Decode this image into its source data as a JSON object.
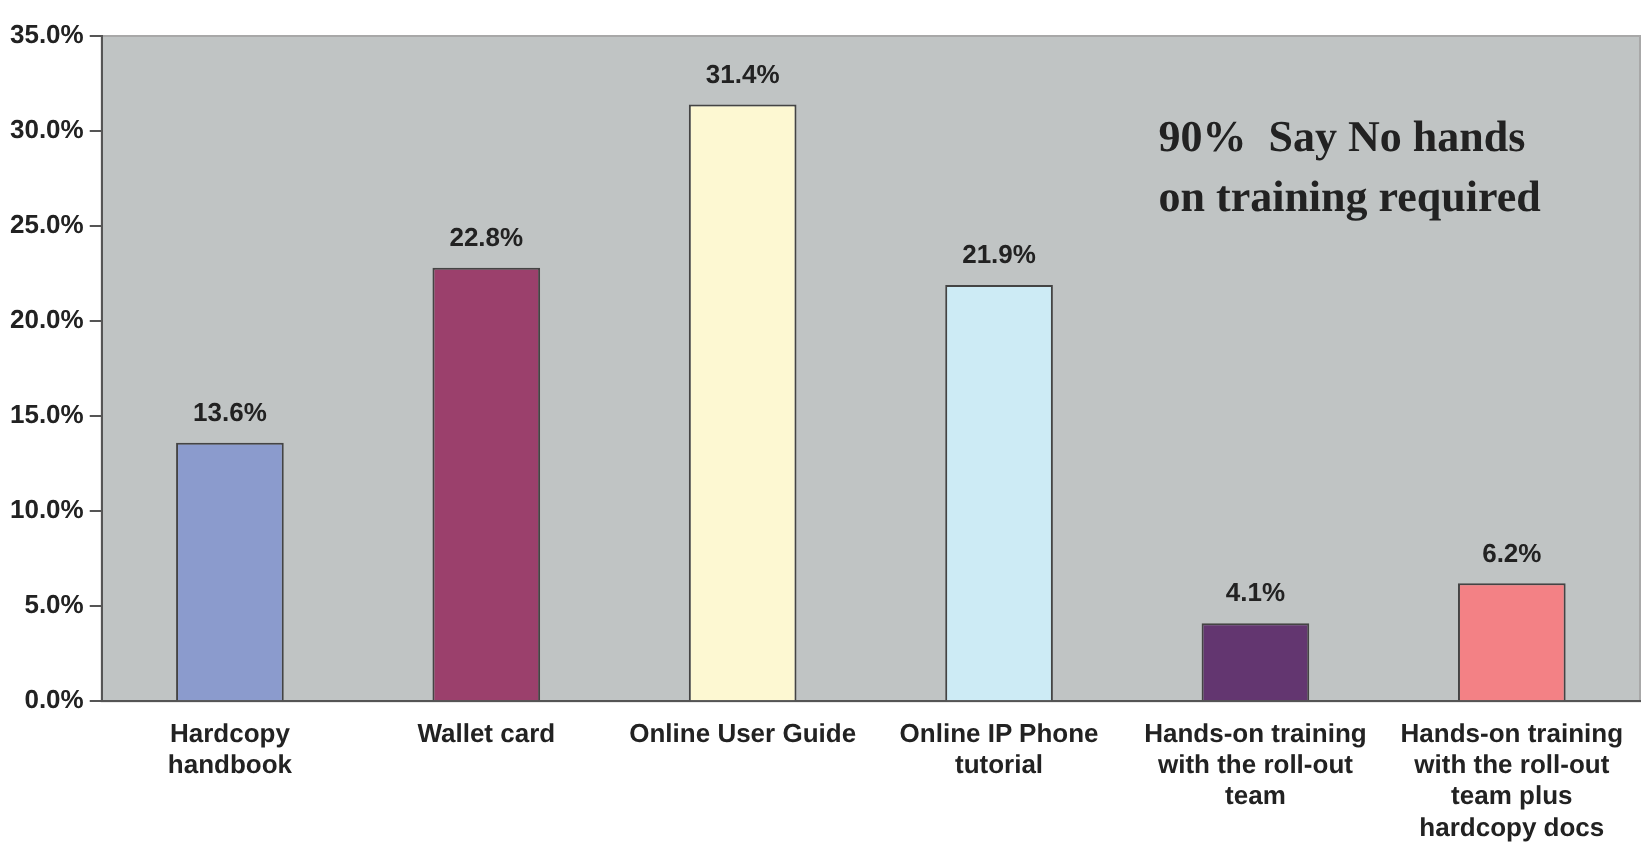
{
  "chart_data": {
    "type": "bar",
    "categories": [
      "Hardcopy handbook",
      "Wallet card",
      "Online User Guide",
      "Online IP Phone tutorial",
      "Hands-on training with the roll-out team",
      "Hands-on training with the roll-out team plus hardcopy docs"
    ],
    "values": [
      13.6,
      22.8,
      31.4,
      21.9,
      4.1,
      6.2
    ],
    "colors": [
      "#8b9bcd",
      "#9b406c",
      "#fdf8d2",
      "#cdebf5",
      "#633670",
      "#f38185"
    ],
    "value_labels": [
      "13.6%",
      "22.8%",
      "31.4%",
      "21.9%",
      "4.1%",
      "6.2%"
    ],
    "ylim": [
      0,
      35
    ],
    "yticks": [
      {
        "value": 0,
        "label": "0.0%"
      },
      {
        "value": 5,
        "label": "5.0%"
      },
      {
        "value": 10,
        "label": "10.0%"
      },
      {
        "value": 15,
        "label": "15.0%"
      },
      {
        "value": 20,
        "label": "20.0%"
      },
      {
        "value": 25,
        "label": "25.0%"
      },
      {
        "value": 30,
        "label": "30.0%"
      },
      {
        "value": 35,
        "label": "35.0%"
      }
    ],
    "annotations": [
      "90%  Say No hands on training required"
    ],
    "grid": false,
    "legend": false
  }
}
